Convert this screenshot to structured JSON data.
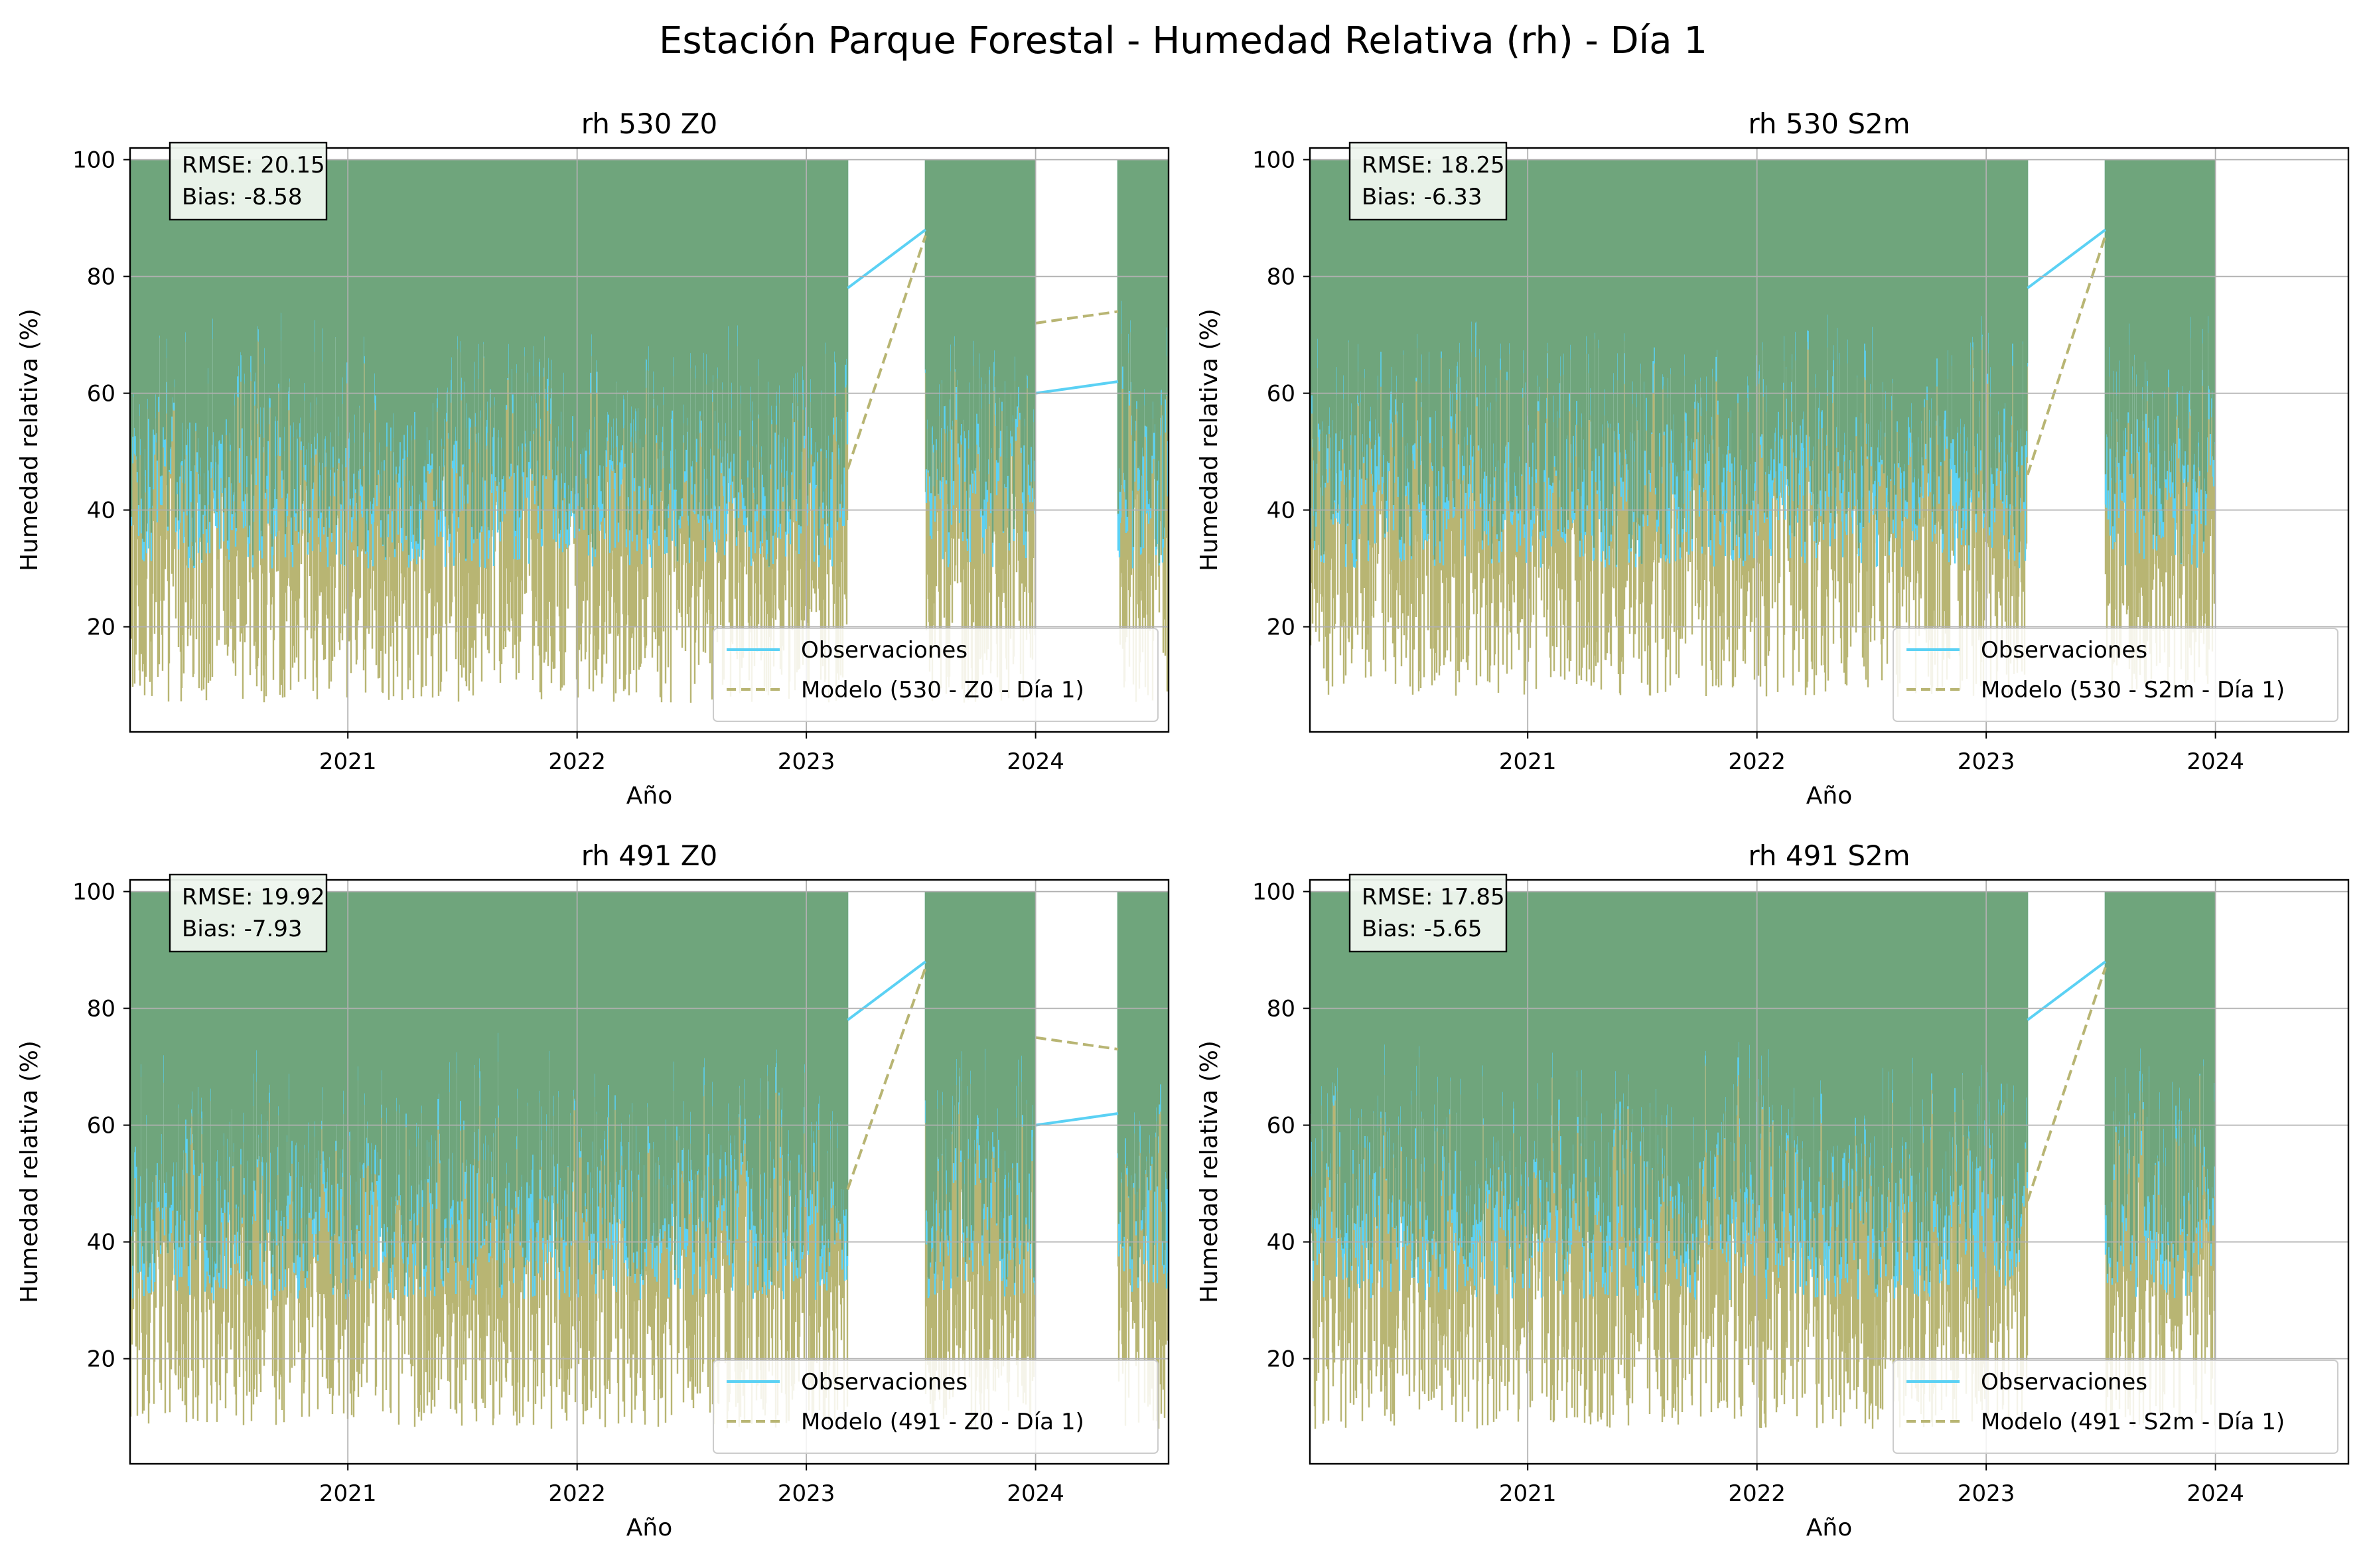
{
  "figure_title": "Estación Parque Forestal - Humedad Relativa (rh) - Día 1",
  "colors": {
    "observations": "#5bd1f4",
    "model": "#b8b573",
    "overlap": "#6fa57c"
  },
  "chart_data": [
    {
      "type": "line",
      "title": "rh 530 Z0",
      "xlabel": "Año",
      "ylabel": "Humedad relativa (%)",
      "xlim": [
        2020.05,
        2024.58
      ],
      "ylim": [
        2,
        102
      ],
      "x_ticks": [
        "2021",
        "2022",
        "2023",
        "2024"
      ],
      "y_ticks": [
        "20",
        "40",
        "60",
        "80",
        "100"
      ],
      "grid": true,
      "legend_position": "lower-right",
      "stats": {
        "rmse": "RMSE: 20.15",
        "bias": "Bias: -8.58"
      },
      "gaps": [
        [
          2023.18,
          2023.52
        ],
        [
          2024.0,
          2024.36
        ]
      ],
      "series": [
        {
          "name": "Observaciones",
          "style": "solid",
          "min_level": 18,
          "bridges": [
            [
              2023.18,
              78,
              2023.52,
              88
            ],
            [
              2024.0,
              60,
              2024.36,
              62
            ]
          ]
        },
        {
          "name": "Modelo (530 - Z0 - Día 1)",
          "style": "dashed",
          "min_level": 7,
          "bridges": [
            [
              2023.18,
              47,
              2023.52,
              87
            ],
            [
              2024.0,
              72,
              2024.36,
              74
            ]
          ]
        }
      ]
    },
    {
      "type": "line",
      "title": "rh 530 S2m",
      "xlabel": "Año",
      "ylabel": "Humedad relativa (%)",
      "xlim": [
        2020.05,
        2024.58
      ],
      "ylim": [
        2,
        102
      ],
      "x_ticks": [
        "2021",
        "2022",
        "2023",
        "2024"
      ],
      "y_ticks": [
        "20",
        "40",
        "60",
        "80",
        "100"
      ],
      "grid": true,
      "legend_position": "lower-right",
      "stats": {
        "rmse": "RMSE: 18.25",
        "bias": "Bias: -6.33"
      },
      "gaps": [
        [
          2023.18,
          2023.52
        ],
        [
          2024.0,
          2024.58
        ]
      ],
      "series": [
        {
          "name": "Observaciones",
          "style": "solid",
          "min_level": 18,
          "bridges": [
            [
              2023.18,
              78,
              2023.52,
              88
            ]
          ]
        },
        {
          "name": "Modelo (530 - S2m - Día 1)",
          "style": "dashed",
          "min_level": 8,
          "bridges": [
            [
              2023.18,
              46,
              2023.52,
              87
            ]
          ]
        }
      ]
    },
    {
      "type": "line",
      "title": "rh 491 Z0",
      "xlabel": "Año",
      "ylabel": "Humedad relativa (%)",
      "xlim": [
        2020.05,
        2024.58
      ],
      "ylim": [
        2,
        102
      ],
      "x_ticks": [
        "2021",
        "2022",
        "2023",
        "2024"
      ],
      "y_ticks": [
        "20",
        "40",
        "60",
        "80",
        "100"
      ],
      "grid": true,
      "legend_position": "lower-right",
      "stats": {
        "rmse": "RMSE: 19.92",
        "bias": "Bias: -7.93"
      },
      "gaps": [
        [
          2023.18,
          2023.52
        ],
        [
          2024.0,
          2024.36
        ]
      ],
      "series": [
        {
          "name": "Observaciones",
          "style": "solid",
          "min_level": 18,
          "bridges": [
            [
              2023.18,
              78,
              2023.52,
              88
            ],
            [
              2024.0,
              60,
              2024.36,
              62
            ]
          ]
        },
        {
          "name": "Modelo (491 - Z0 - Día 1)",
          "style": "dashed",
          "min_level": 8,
          "bridges": [
            [
              2023.18,
              49,
              2023.52,
              87
            ],
            [
              2024.0,
              75,
              2024.36,
              73
            ]
          ]
        }
      ]
    },
    {
      "type": "line",
      "title": "rh 491 S2m",
      "xlabel": "Año",
      "ylabel": "Humedad relativa (%)",
      "xlim": [
        2020.05,
        2024.58
      ],
      "ylim": [
        2,
        102
      ],
      "x_ticks": [
        "2021",
        "2022",
        "2023",
        "2024"
      ],
      "y_ticks": [
        "20",
        "40",
        "60",
        "80",
        "100"
      ],
      "grid": true,
      "legend_position": "lower-right",
      "stats": {
        "rmse": "RMSE: 17.85",
        "bias": "Bias: -5.65"
      },
      "gaps": [
        [
          2023.18,
          2023.52
        ],
        [
          2024.0,
          2024.58
        ]
      ],
      "series": [
        {
          "name": "Observaciones",
          "style": "solid",
          "min_level": 18,
          "bridges": [
            [
              2023.18,
              78,
              2023.52,
              88
            ]
          ]
        },
        {
          "name": "Modelo (491 - S2m - Día 1)",
          "style": "dashed",
          "min_level": 8,
          "bridges": [
            [
              2023.18,
              47,
              2023.52,
              87
            ]
          ]
        }
      ]
    }
  ]
}
